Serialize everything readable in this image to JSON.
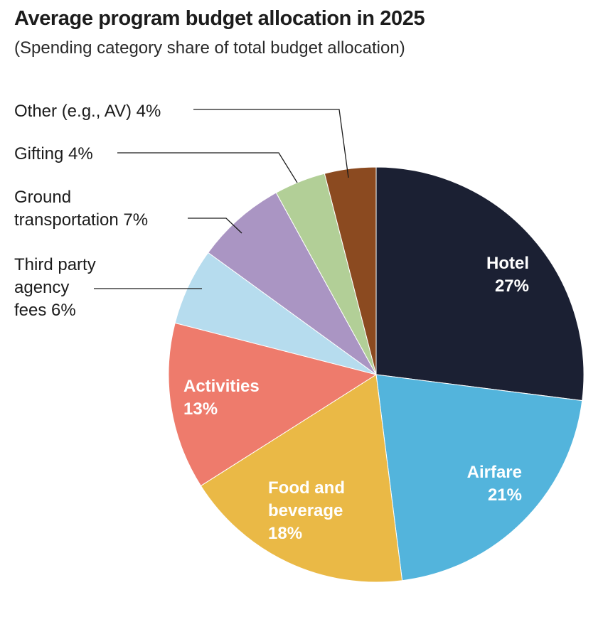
{
  "title": "Average program budget allocation in 2025",
  "subtitle": "(Spending category share of total budget allocation)",
  "chart_data": {
    "type": "pie",
    "title": "Average program budget allocation in 2025",
    "subtitle": "(Spending category share of total budget allocation)",
    "slices": [
      {
        "key": "hotel",
        "label": [
          "Hotel",
          "27%"
        ],
        "value": 27,
        "color": "#1b2033",
        "label_style": "inside"
      },
      {
        "key": "airfare",
        "label": [
          "Airfare",
          "21%"
        ],
        "value": 21,
        "color": "#53b4dc",
        "label_style": "inside"
      },
      {
        "key": "food-and-beverage",
        "label": [
          "Food and",
          "beverage",
          "18%"
        ],
        "value": 18,
        "color": "#eab946",
        "label_style": "inside"
      },
      {
        "key": "activities",
        "label": [
          "Activities",
          "13%"
        ],
        "value": 13,
        "color": "#ee7b6c",
        "label_style": "inside"
      },
      {
        "key": "third-party-agency-fees",
        "label": [
          "Third party",
          "agency",
          "fees  6%"
        ],
        "value": 6,
        "color": "#b6dcee",
        "label_style": "external"
      },
      {
        "key": "ground-transportation",
        "label": [
          "Ground",
          "transportation  7%"
        ],
        "value": 7,
        "color": "#aa95c3",
        "label_style": "external"
      },
      {
        "key": "gifting",
        "label": [
          "Gifting  4%"
        ],
        "value": 4,
        "color": "#b2cf97",
        "label_style": "external"
      },
      {
        "key": "other",
        "label": [
          "Other (e.g., AV)  4%"
        ],
        "value": 4,
        "color": "#8b4a20",
        "label_style": "external"
      }
    ]
  }
}
